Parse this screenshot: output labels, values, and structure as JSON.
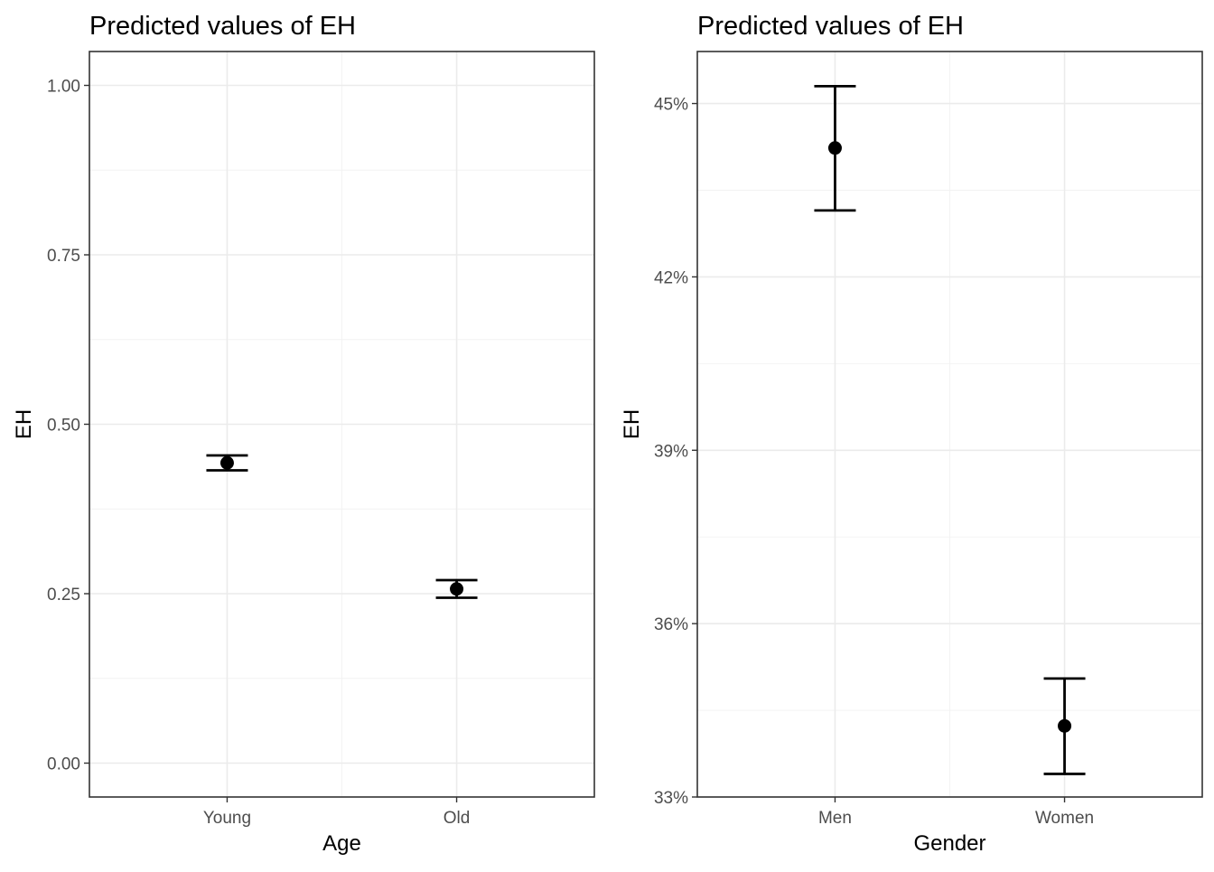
{
  "chart_data": [
    {
      "type": "scatter",
      "title": "Predicted values of EH",
      "xlabel": "Age",
      "ylabel": "EH",
      "categories": [
        "Young",
        "Old"
      ],
      "series": [
        {
          "values": [
            0.443,
            0.257
          ],
          "ci_low": [
            0.432,
            0.244
          ],
          "ci_high": [
            0.454,
            0.27
          ]
        }
      ],
      "ylim": [
        -0.05,
        1.05
      ],
      "yticks": [
        0.0,
        0.25,
        0.5,
        0.75,
        1.0
      ],
      "ytick_labels": [
        "0.00",
        "0.25",
        "0.50",
        "0.75",
        "1.00"
      ],
      "grid": true
    },
    {
      "type": "scatter",
      "title": "Predicted values of EH",
      "xlabel": "Gender",
      "ylabel": "EH",
      "categories": [
        "Men",
        "Women"
      ],
      "series": [
        {
          "values": [
            0.4423,
            0.3423
          ],
          "ci_low": [
            0.4315,
            0.334
          ],
          "ci_high": [
            0.453,
            0.3505
          ]
        }
      ],
      "ylim": [
        0.33,
        0.459
      ],
      "yticks": [
        0.33,
        0.36,
        0.39,
        0.42,
        0.45
      ],
      "ytick_labels": [
        "33%",
        "36%",
        "39%",
        "42%",
        "45%"
      ],
      "grid": true
    }
  ]
}
